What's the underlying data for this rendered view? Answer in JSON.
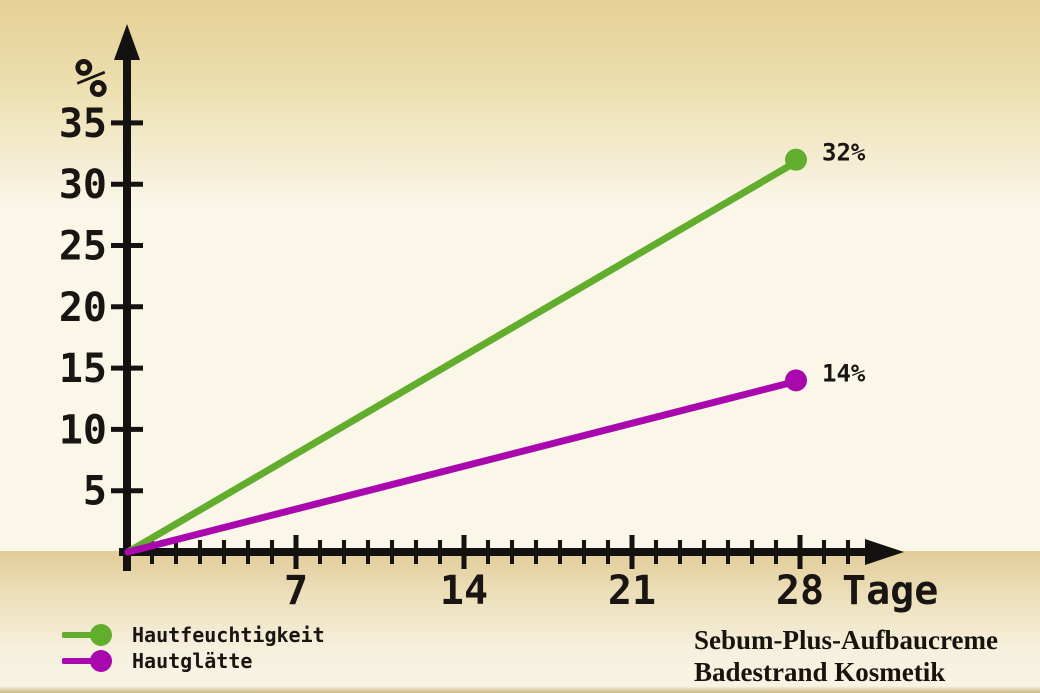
{
  "chart_data": {
    "type": "line",
    "title": "",
    "xlabel": "Tage",
    "ylabel": "%",
    "xlim": [
      0,
      31.5
    ],
    "ylim": [
      0,
      38
    ],
    "grid": false,
    "x_ticks_labeled": [
      7,
      14,
      21,
      28
    ],
    "x_minor_ticks": {
      "from": 1,
      "to": 30,
      "step": 1
    },
    "y_ticks": [
      5,
      10,
      15,
      20,
      25,
      30,
      35
    ],
    "x": [
      0,
      28
    ],
    "series": [
      {
        "name": "Hautfeuchtigkeit",
        "color": "#63ad2e",
        "x": [
          0,
          28
        ],
        "values": [
          0,
          32
        ],
        "end_label": "32%"
      },
      {
        "name": "Hautglätte",
        "color": "#a808ac",
        "x": [
          0,
          28
        ],
        "values": [
          0,
          14
        ],
        "end_label": "14%"
      }
    ],
    "legend_position": "bottom-left",
    "annotations": [
      "32%",
      "14%"
    ]
  },
  "footer": {
    "brand_line1": "Sebum-Plus-Aufbaucreme",
    "brand_line2": "Badestrand Kosmetik"
  },
  "colors": {
    "axis": "#141210",
    "label_text": "#181512",
    "background_top": "#e6d096",
    "background_mid": "#faf6e8",
    "background_band": "#e2cc99",
    "series_green": "#63ad2e",
    "series_purple": "#a808ac"
  }
}
